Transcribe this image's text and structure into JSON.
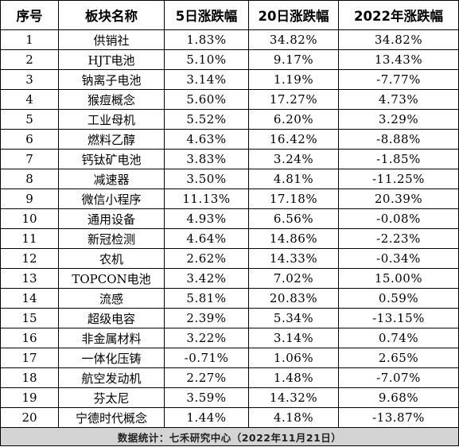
{
  "table": {
    "headers": [
      "序号",
      "板块名称",
      "5日涨跌幅",
      "20日涨跌幅",
      "2022年涨跌幅"
    ],
    "rows": [
      [
        "1",
        "供销社",
        "1.83%",
        "34.82%",
        "34.82%"
      ],
      [
        "2",
        "HJT电池",
        "5.10%",
        "9.17%",
        "13.43%"
      ],
      [
        "3",
        "钠离子电池",
        "3.14%",
        "1.19%",
        "-7.77%"
      ],
      [
        "4",
        "猴痘概念",
        "5.60%",
        "17.27%",
        "4.73%"
      ],
      [
        "5",
        "工业母机",
        "5.52%",
        "6.20%",
        "3.29%"
      ],
      [
        "6",
        "燃料乙醇",
        "4.63%",
        "16.42%",
        "-8.88%"
      ],
      [
        "7",
        "钙钛矿电池",
        "3.83%",
        "3.24%",
        "-1.85%"
      ],
      [
        "8",
        "减速器",
        "3.50%",
        "4.81%",
        "-11.25%"
      ],
      [
        "9",
        "微信小程序",
        "11.13%",
        "17.18%",
        "20.39%"
      ],
      [
        "10",
        "通用设备",
        "4.93%",
        "6.56%",
        "-0.08%"
      ],
      [
        "11",
        "新冠检测",
        "4.64%",
        "14.86%",
        "-2.23%"
      ],
      [
        "12",
        "农机",
        "2.62%",
        "14.33%",
        "-0.34%"
      ],
      [
        "13",
        "TOPCON电池",
        "3.42%",
        "7.02%",
        "15.00%"
      ],
      [
        "14",
        "流感",
        "5.81%",
        "20.83%",
        "0.59%"
      ],
      [
        "15",
        "超级电容",
        "2.39%",
        "5.34%",
        "-13.15%"
      ],
      [
        "16",
        "非金属材料",
        "3.22%",
        "3.14%",
        "0.74%"
      ],
      [
        "17",
        "一体化压铸",
        "-0.71%",
        "1.06%",
        "2.65%"
      ],
      [
        "18",
        "航空发动机",
        "2.27%",
        "1.48%",
        "-7.07%"
      ],
      [
        "19",
        "芬太尼",
        "3.59%",
        "14.32%",
        "9.68%"
      ],
      [
        "20",
        "宁德时代概念",
        "1.44%",
        "4.18%",
        "-13.87%"
      ]
    ],
    "footer": "数据统计：七禾研究中心（2022年11月21日）"
  }
}
